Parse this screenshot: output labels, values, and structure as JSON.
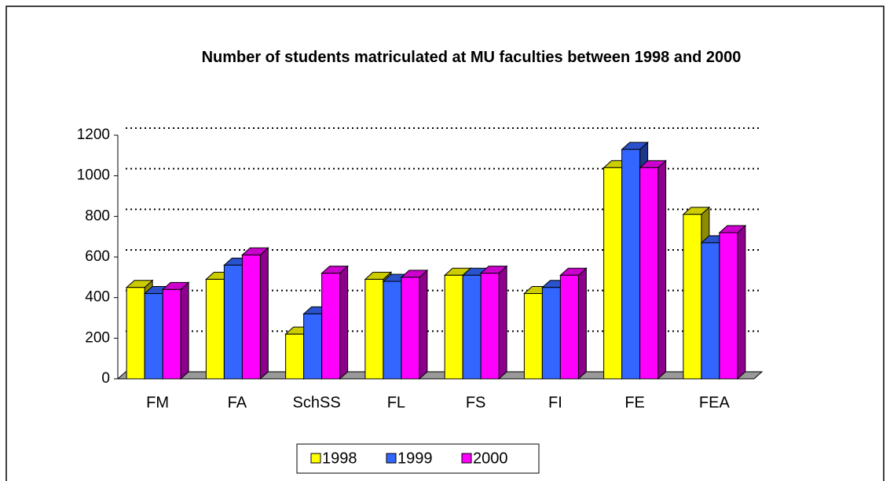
{
  "chart_data": {
    "type": "bar3d",
    "title": "Number of students matriculated at MU faculties between 1998 and 2000",
    "categories": [
      "FM",
      "FA",
      "SchSS",
      "FL",
      "FS",
      "FI",
      "FE",
      "FEA"
    ],
    "series": [
      {
        "name": "1998",
        "color": "#ffff00",
        "values": [
          450,
          490,
          220,
          490,
          510,
          420,
          1040,
          810
        ]
      },
      {
        "name": "1999",
        "color": "#3366ff",
        "values": [
          420,
          560,
          320,
          480,
          510,
          450,
          1130,
          670
        ]
      },
      {
        "name": "2000",
        "color": "#ff00ff",
        "values": [
          440,
          610,
          520,
          500,
          520,
          510,
          1040,
          720
        ]
      }
    ],
    "ylim": [
      0,
      1200
    ],
    "yticks": [
      0,
      200,
      400,
      600,
      800,
      1000,
      1200
    ],
    "grid": true,
    "legend": "bottom"
  }
}
